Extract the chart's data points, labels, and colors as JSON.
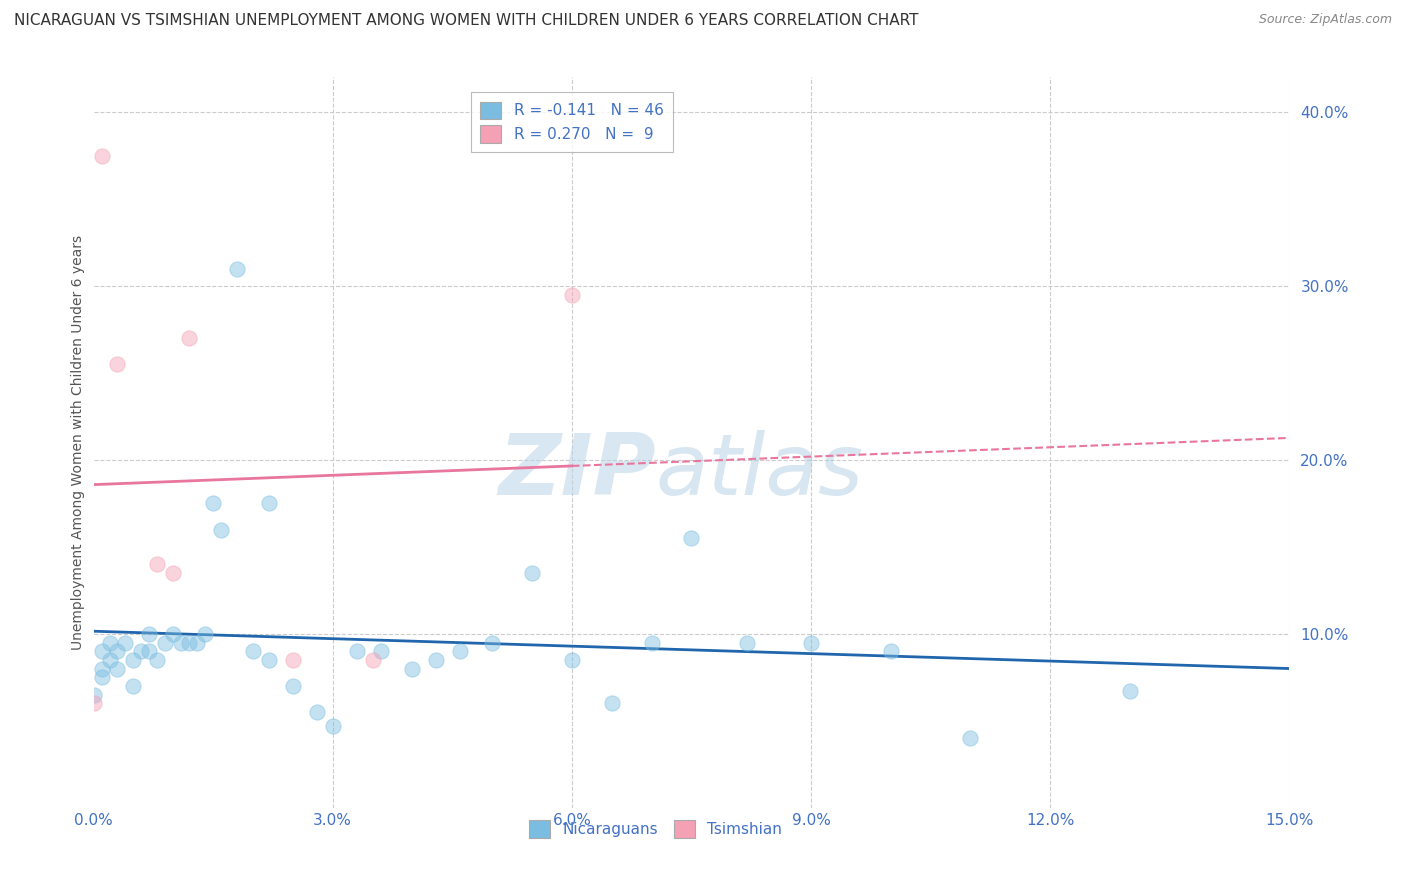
{
  "title": "NICARAGUAN VS TSIMSHIAN UNEMPLOYMENT AMONG WOMEN WITH CHILDREN UNDER 6 YEARS CORRELATION CHART",
  "source": "Source: ZipAtlas.com",
  "ylabel": "Unemployment Among Women with Children Under 6 years",
  "legend_label1": "Nicaraguans",
  "legend_label2": "Tsimshian",
  "R1": -0.141,
  "N1": 46,
  "R2": 0.27,
  "N2": 9,
  "color1": "#7bbde0",
  "color2": "#f4a0b5",
  "line_color1": "#2166ac",
  "line_color2": "#e8769e",
  "xlim": [
    0.0,
    0.15
  ],
  "ylim": [
    0.0,
    0.42
  ],
  "xticks": [
    0.0,
    0.03,
    0.06,
    0.09,
    0.12,
    0.15
  ],
  "xtick_labels": [
    "0.0%",
    "3.0%",
    "6.0%",
    "9.0%",
    "12.0%",
    "15.0%"
  ],
  "yticks": [
    0.0,
    0.1,
    0.2,
    0.3,
    0.4
  ],
  "ytick_labels": [
    "",
    "10.0%",
    "20.0%",
    "30.0%",
    "40.0%"
  ],
  "nicaraguan_x": [
    0.0,
    0.001,
    0.001,
    0.001,
    0.002,
    0.002,
    0.003,
    0.003,
    0.004,
    0.005,
    0.005,
    0.006,
    0.007,
    0.007,
    0.008,
    0.009,
    0.01,
    0.011,
    0.012,
    0.013,
    0.014,
    0.015,
    0.016,
    0.018,
    0.02,
    0.022,
    0.025,
    0.028,
    0.03,
    0.033,
    0.036,
    0.04,
    0.043,
    0.046,
    0.05,
    0.055,
    0.06,
    0.065,
    0.07,
    0.075,
    0.082,
    0.09,
    0.1,
    0.11,
    0.13,
    0.022
  ],
  "nicaraguan_y": [
    0.065,
    0.09,
    0.08,
    0.075,
    0.095,
    0.085,
    0.09,
    0.08,
    0.095,
    0.085,
    0.07,
    0.09,
    0.1,
    0.09,
    0.085,
    0.095,
    0.1,
    0.095,
    0.095,
    0.095,
    0.1,
    0.175,
    0.16,
    0.31,
    0.09,
    0.085,
    0.07,
    0.055,
    0.047,
    0.09,
    0.09,
    0.08,
    0.085,
    0.09,
    0.095,
    0.135,
    0.085,
    0.06,
    0.095,
    0.155,
    0.095,
    0.095,
    0.09,
    0.04,
    0.067,
    0.175
  ],
  "tsimshian_x": [
    0.0,
    0.001,
    0.003,
    0.008,
    0.012,
    0.025,
    0.035,
    0.06,
    0.01
  ],
  "tsimshian_y": [
    0.06,
    0.375,
    0.255,
    0.14,
    0.27,
    0.085,
    0.085,
    0.295,
    0.135
  ],
  "watermark_zip": "ZIP",
  "watermark_atlas": "atlas",
  "background_color": "#ffffff",
  "grid_color": "#cccccc",
  "title_fontsize": 11,
  "axis_label_fontsize": 10,
  "tick_fontsize": 11,
  "marker_size": 120,
  "marker_alpha": 0.45
}
